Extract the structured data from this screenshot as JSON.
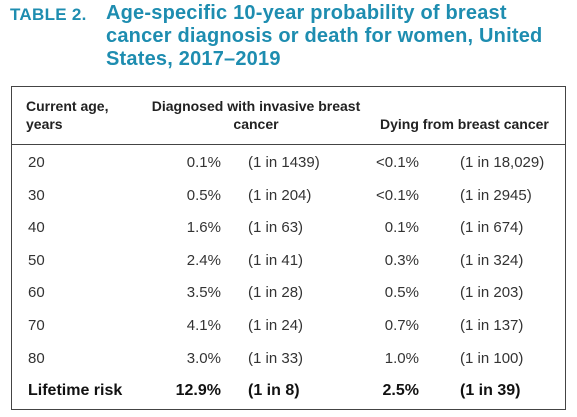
{
  "caption": {
    "label": "TABLE 2.",
    "title": "Age-specific 10-year probability of breast cancer diagnosis or death for women, United States, 2017–2019"
  },
  "headers": {
    "age": "Current age, years",
    "diagnosed": "Diagnosed with invasive breast cancer",
    "dying": "Dying from breast cancer"
  },
  "rows": [
    {
      "age": "20",
      "diag_pct": "0.1%",
      "diag_odds": "(1 in 1439)",
      "die_pct": "<0.1%",
      "die_odds": "(1 in 18,029)"
    },
    {
      "age": "30",
      "diag_pct": "0.5%",
      "diag_odds": "(1 in 204)",
      "die_pct": "<0.1%",
      "die_odds": "(1 in 2945)"
    },
    {
      "age": "40",
      "diag_pct": "1.6%",
      "diag_odds": "(1 in 63)",
      "die_pct": "0.1%",
      "die_odds": "(1 in 674)"
    },
    {
      "age": "50",
      "diag_pct": "2.4%",
      "diag_odds": "(1 in 41)",
      "die_pct": "0.3%",
      "die_odds": "(1 in 324)"
    },
    {
      "age": "60",
      "diag_pct": "3.5%",
      "diag_odds": "(1 in 28)",
      "die_pct": "0.5%",
      "die_odds": "(1 in 203)"
    },
    {
      "age": "70",
      "diag_pct": "4.1%",
      "diag_odds": "(1 in 24)",
      "die_pct": "0.7%",
      "die_odds": "(1 in 137)"
    },
    {
      "age": "80",
      "diag_pct": "3.0%",
      "diag_odds": "(1 in 33)",
      "die_pct": "1.0%",
      "die_odds": "(1 in 100)"
    }
  ],
  "total": {
    "age": "Lifetime risk",
    "diag_pct": "12.9%",
    "diag_odds": "(1 in 8)",
    "die_pct": "2.5%",
    "die_odds": "(1 in 39)"
  },
  "colors": {
    "caption": "#1e8db0",
    "border": "#444444"
  }
}
